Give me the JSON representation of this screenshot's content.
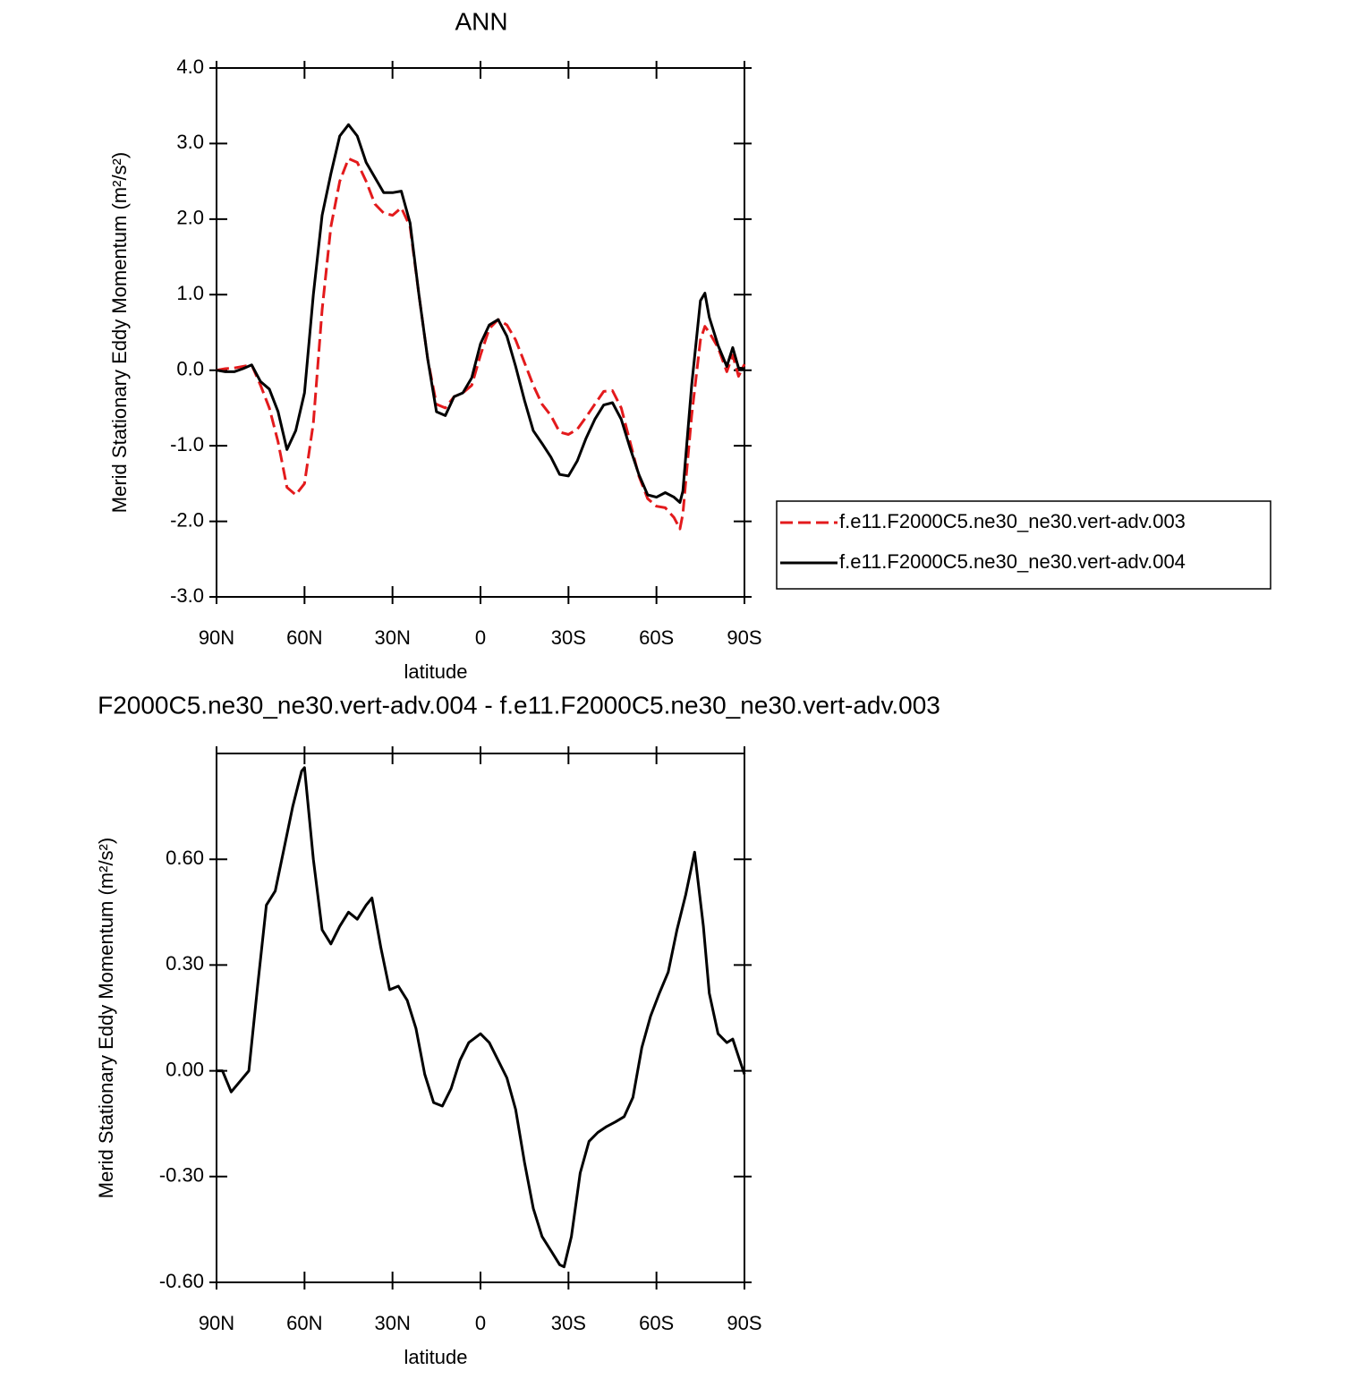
{
  "chart_data": [
    {
      "type": "line",
      "title": "ANN",
      "x_label": "latitude",
      "y_label": "Merid Stationary Eddy Momentum (m²/s²)",
      "x": [
        90,
        87,
        84,
        81,
        78,
        75,
        72,
        69,
        66,
        63,
        60,
        57,
        54,
        51,
        48,
        45,
        42,
        39,
        36,
        33,
        30,
        27,
        24,
        21,
        18,
        15,
        12,
        9,
        6,
        3,
        0,
        -3,
        -6,
        -9,
        -12,
        -15,
        -18,
        -21,
        -24,
        -27,
        -30,
        -33,
        -36,
        -39,
        -42,
        -45,
        -48,
        -51,
        -54,
        -57,
        -60,
        -63,
        -66,
        -68,
        -69,
        -72,
        -75,
        -76.5,
        -78,
        -81,
        -84,
        -86,
        -88,
        -90
      ],
      "series": [
        {
          "name": "f.e11.F2000C5.ne30_ne30.vert-adv.003",
          "color": "#e31a1c",
          "style": "dashed",
          "values": [
            0.0,
            0.02,
            0.03,
            0.05,
            0.07,
            -0.2,
            -0.5,
            -0.95,
            -1.55,
            -1.65,
            -1.5,
            -0.7,
            0.8,
            1.9,
            2.5,
            2.8,
            2.75,
            2.5,
            2.2,
            2.08,
            2.05,
            2.15,
            1.9,
            1.0,
            0.15,
            -0.45,
            -0.5,
            -0.35,
            -0.3,
            -0.2,
            0.2,
            0.55,
            0.67,
            0.6,
            0.4,
            0.1,
            -0.2,
            -0.45,
            -0.6,
            -0.82,
            -0.85,
            -0.78,
            -0.62,
            -0.45,
            -0.28,
            -0.27,
            -0.5,
            -0.95,
            -1.4,
            -1.7,
            -1.8,
            -1.82,
            -1.95,
            -2.1,
            -1.9,
            -0.6,
            0.4,
            0.58,
            0.5,
            0.3,
            -0.02,
            0.2,
            -0.08,
            0.08
          ]
        },
        {
          "name": "f.e11.F2000C5.ne30_ne30.vert-adv.004",
          "color": "#000000",
          "style": "solid",
          "values": [
            0.0,
            -0.02,
            -0.02,
            0.02,
            0.07,
            -0.15,
            -0.25,
            -0.55,
            -1.05,
            -0.8,
            -0.3,
            1.0,
            2.05,
            2.6,
            3.1,
            3.25,
            3.1,
            2.75,
            2.55,
            2.35,
            2.35,
            2.37,
            1.95,
            1.0,
            0.15,
            -0.55,
            -0.6,
            -0.35,
            -0.3,
            -0.1,
            0.35,
            0.6,
            0.67,
            0.45,
            0.05,
            -0.4,
            -0.8,
            -0.97,
            -1.15,
            -1.38,
            -1.4,
            -1.2,
            -0.9,
            -0.65,
            -0.46,
            -0.43,
            -0.65,
            -1.03,
            -1.38,
            -1.65,
            -1.68,
            -1.62,
            -1.68,
            -1.75,
            -1.6,
            -0.2,
            0.92,
            1.02,
            0.7,
            0.33,
            0.05,
            0.3,
            0.03,
            0.02
          ]
        }
      ],
      "xlim": [
        90,
        -90
      ],
      "xticks": [
        {
          "value": 90,
          "label": "90N"
        },
        {
          "value": 60,
          "label": "60N"
        },
        {
          "value": 30,
          "label": "30N"
        },
        0,
        {
          "value": -30,
          "label": "30S"
        },
        {
          "value": -60,
          "label": "60S"
        },
        {
          "value": -90,
          "label": "90S"
        }
      ],
      "ylim": [
        -3,
        4
      ],
      "yticks": [
        {
          "value": -3,
          "label": "-3.0"
        },
        {
          "value": -2,
          "label": "-2.0"
        },
        {
          "value": -1,
          "label": "-1.0"
        },
        {
          "value": 0,
          "label": "0.0"
        },
        {
          "value": 1,
          "label": "1.0"
        },
        {
          "value": 2,
          "label": "2.0"
        },
        {
          "value": 3,
          "label": "3.0"
        },
        {
          "value": 4,
          "label": "4.0"
        }
      ],
      "legend": "right"
    },
    {
      "type": "line",
      "title": "F2000C5.ne30_ne30.vert-adv.004 - f.e11.F2000C5.ne30_ne30.vert-adv.003",
      "x_label": "latitude",
      "y_label": "Merid Stationary Eddy Momentum (m²/s²)",
      "x": [
        90,
        88,
        85,
        82,
        79,
        76,
        73,
        70,
        67,
        64,
        61,
        60,
        57,
        54,
        51,
        48,
        45,
        42,
        39,
        37,
        34,
        31,
        28,
        25,
        22,
        19,
        16,
        13,
        10,
        7,
        4,
        0,
        -3,
        -6,
        -9,
        -12,
        -15,
        -18,
        -21,
        -24,
        -27,
        -28.5,
        -31,
        -34,
        -37,
        -40,
        -43,
        -46,
        -49,
        -52,
        -55,
        -58,
        -61,
        -64,
        -67,
        -70,
        -73,
        -76,
        -78,
        -81,
        -84,
        -86,
        -88,
        -90
      ],
      "values": [
        0.0,
        0.0,
        -0.06,
        -0.03,
        0.0,
        0.24,
        0.47,
        0.51,
        0.63,
        0.75,
        0.85,
        0.86,
        0.6,
        0.4,
        0.36,
        0.41,
        0.45,
        0.43,
        0.47,
        0.49,
        0.35,
        0.23,
        0.24,
        0.2,
        0.12,
        -0.01,
        -0.09,
        -0.1,
        -0.05,
        0.03,
        0.08,
        0.105,
        0.08,
        0.03,
        -0.02,
        -0.11,
        -0.26,
        -0.39,
        -0.47,
        -0.51,
        -0.55,
        -0.556,
        -0.47,
        -0.29,
        -0.2,
        -0.175,
        -0.158,
        -0.145,
        -0.13,
        -0.075,
        0.066,
        0.155,
        0.22,
        0.28,
        0.4,
        0.5,
        0.62,
        0.41,
        0.22,
        0.105,
        0.08,
        0.09,
        0.04,
        -0.01
      ],
      "color": "#000000",
      "xlim": [
        90,
        -90
      ],
      "xticks": [
        {
          "value": 90,
          "label": "90N"
        },
        {
          "value": 60,
          "label": "60N"
        },
        {
          "value": 30,
          "label": "30N"
        },
        0,
        {
          "value": -30,
          "label": "30S"
        },
        {
          "value": -60,
          "label": "60S"
        },
        {
          "value": -90,
          "label": "90S"
        }
      ],
      "ylim": [
        -0.6,
        0.9
      ],
      "yticks": [
        {
          "value": -0.6,
          "label": "-0.60"
        },
        {
          "value": -0.3,
          "label": "-0.30"
        },
        {
          "value": 0,
          "label": "0.00"
        },
        {
          "value": 0.3,
          "label": "0.30"
        },
        {
          "value": 0.6,
          "label": "0.60"
        }
      ]
    }
  ]
}
